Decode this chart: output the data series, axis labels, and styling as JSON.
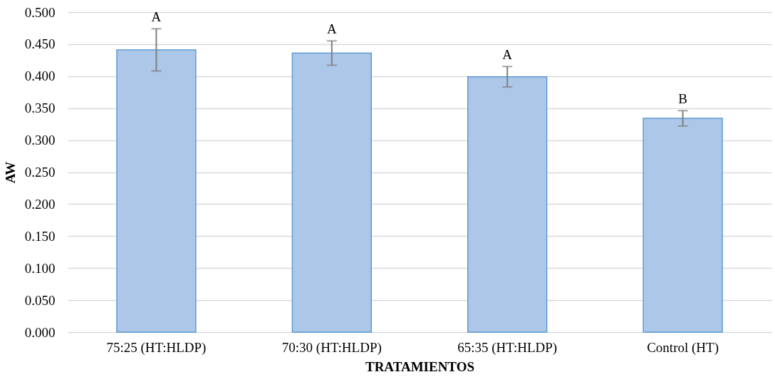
{
  "chart_data": {
    "type": "bar",
    "xlabel": "TRATAMIENTOS",
    "ylabel": "AW",
    "categories": [
      "75:25 (HT:HLDP)",
      "70:30 (HT:HLDP)",
      "65:35 (HT:HLDP)",
      "Control (HT)"
    ],
    "values": [
      0.441,
      0.436,
      0.399,
      0.334
    ],
    "errors": [
      0.033,
      0.019,
      0.016,
      0.012
    ],
    "color": "#adc7e8",
    "ylim": [
      0,
      0.5
    ],
    "yticks": [
      {
        "value": 0,
        "label": "0.000"
      },
      {
        "value": 0.05,
        "label": "0.050"
      },
      {
        "value": 0.1,
        "label": "0.100"
      },
      {
        "value": 0.15,
        "label": "0.150"
      },
      {
        "value": 0.2,
        "label": "0.200"
      },
      {
        "value": 0.25,
        "label": "0.250"
      },
      {
        "value": 0.3,
        "label": "0.300"
      },
      {
        "value": 0.35,
        "label": "0.350"
      },
      {
        "value": 0.4,
        "label": "0.400"
      },
      {
        "value": 0.45,
        "label": "0.450"
      },
      {
        "value": 0.5,
        "label": "0.500"
      }
    ],
    "grid": "y",
    "annotations": [
      {
        "text": "A",
        "x": "75:25 (HT:HLDP)",
        "y": 0.474
      },
      {
        "text": "A",
        "x": "70:30 (HT:HLDP)",
        "y": 0.455
      },
      {
        "text": "A",
        "x": "65:35 (HT:HLDP)",
        "y": 0.415
      },
      {
        "text": "B",
        "x": "Control (HT)",
        "y": 0.346
      }
    ]
  }
}
